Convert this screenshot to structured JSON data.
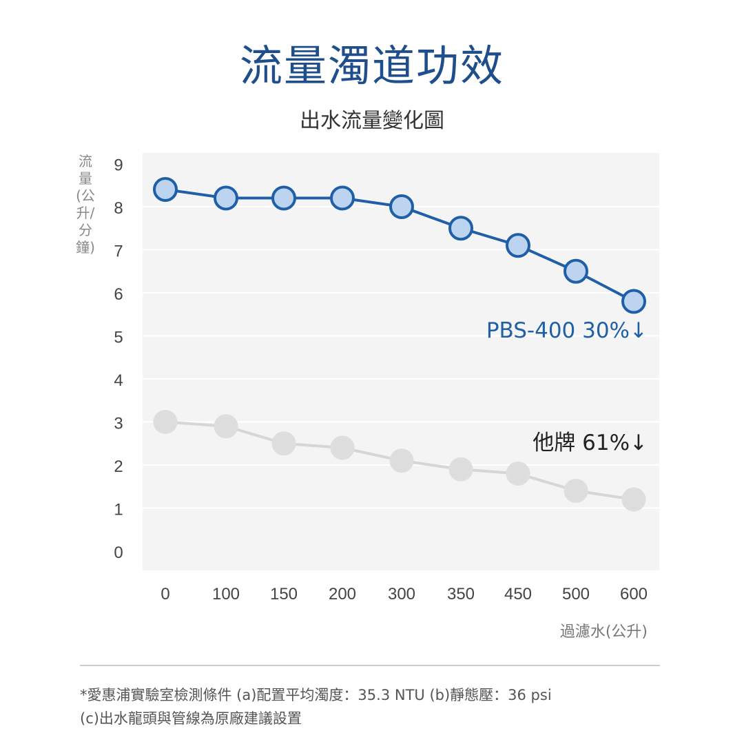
{
  "title": "流量濁道功效",
  "chart_data": {
    "type": "line",
    "title": "出水流量變化圖",
    "ylabel": "流量(公升/分鐘)",
    "xlabel": "過濾水(公升)",
    "categories": [
      "0",
      "100",
      "150",
      "200",
      "300",
      "350",
      "450",
      "500",
      "600"
    ],
    "yticks": [
      "0",
      "1",
      "2",
      "3",
      "4",
      "5",
      "6",
      "7",
      "8",
      "9"
    ],
    "ylim": [
      0,
      9
    ],
    "grid": true,
    "series": [
      {
        "name": "PBS-400",
        "annotation": "PBS-400  30%↓",
        "color": "#1f5fa8",
        "fill": "#bcd4f0",
        "values": [
          8.4,
          8.2,
          8.2,
          8.2,
          8.0,
          7.5,
          7.1,
          6.5,
          5.8
        ]
      },
      {
        "name": "他牌",
        "annotation": "他牌  61%↓",
        "color": "#d6d6d6",
        "fill": "#dddddd",
        "values": [
          3.0,
          2.9,
          2.5,
          2.4,
          2.1,
          1.9,
          1.8,
          1.4,
          1.2
        ]
      }
    ]
  },
  "footnote": {
    "line1": "*愛惠浦實驗室檢測條件 (a)配置平均濁度：35.3 NTU (b)靜態壓：36 psi",
    "line2": "(c)出水龍頭與管線為原廠建議設置"
  }
}
